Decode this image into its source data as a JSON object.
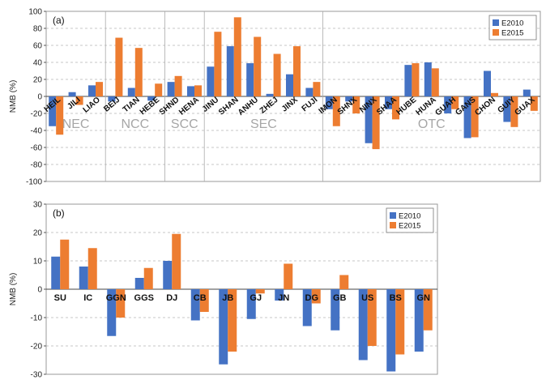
{
  "chart_data": [
    {
      "type": "bar",
      "panel_label": "(a)",
      "ylabel": "NMB (%)",
      "ylim": [
        -100,
        100
      ],
      "yticks": [
        -100,
        -80,
        -60,
        -40,
        -20,
        0,
        20,
        40,
        60,
        80,
        100
      ],
      "grid": true,
      "legend": "top-right",
      "categories": [
        "HEIL",
        "JILI",
        "LIAO",
        "BEIJ",
        "TIAN",
        "HEBE",
        "SHND",
        "HENA",
        "JINU",
        "SHAN",
        "ANHU",
        "ZHEJ",
        "JINX",
        "FUJI",
        "IMON",
        "SHNX",
        "NINX",
        "SHAA",
        "HUBE",
        "HUNA",
        "GUAH",
        "GANS",
        "CHON",
        "GUIY",
        "GUAX"
      ],
      "series": [
        {
          "name": "E2010",
          "color": "#4472C4",
          "values": [
            -35,
            5,
            13,
            -6,
            10,
            -5,
            17,
            12,
            35,
            59,
            39,
            3,
            26,
            10,
            -15,
            -6,
            -55,
            -15,
            37,
            40,
            -20,
            -49,
            30,
            -30,
            8
          ]
        },
        {
          "name": "E2015",
          "color": "#ED7D31",
          "values": [
            -45,
            -10,
            17,
            69,
            57,
            15,
            24,
            13,
            76,
            93,
            70,
            50,
            59,
            17,
            -35,
            -20,
            -62,
            -27,
            39,
            33,
            -15,
            -48,
            4,
            -36,
            -17
          ]
        }
      ],
      "regions": [
        {
          "label": "NEC",
          "start": 0,
          "end": 2
        },
        {
          "label": "NCC",
          "start": 3,
          "end": 5
        },
        {
          "label": "SCC",
          "start": 6,
          "end": 7
        },
        {
          "label": "SEC",
          "start": 8,
          "end": 13
        },
        {
          "label": "OTC",
          "start": 14,
          "end": 24
        }
      ]
    },
    {
      "type": "bar",
      "panel_label": "(b)",
      "ylabel": "NMB (%)",
      "ylim": [
        -30,
        30
      ],
      "yticks": [
        -30,
        -20,
        -10,
        0,
        10,
        20,
        30
      ],
      "grid": true,
      "legend": "top-right",
      "categories": [
        "SU",
        "IC",
        "GGN",
        "GGS",
        "DJ",
        "CB",
        "JB",
        "GJ",
        "JN",
        "DG",
        "GB",
        "US",
        "BS",
        "GN"
      ],
      "series": [
        {
          "name": "E2010",
          "color": "#4472C4",
          "values": [
            11.5,
            8,
            -16.5,
            4,
            10,
            -11,
            -26.5,
            -10.5,
            -4,
            -13,
            -14.5,
            -25,
            -29,
            -22
          ]
        },
        {
          "name": "E2015",
          "color": "#ED7D31",
          "values": [
            17.5,
            14.5,
            -10,
            7.5,
            19.5,
            -8,
            -22,
            -1.5,
            9,
            -5,
            5,
            -20,
            -23,
            -14.5
          ]
        }
      ]
    }
  ]
}
